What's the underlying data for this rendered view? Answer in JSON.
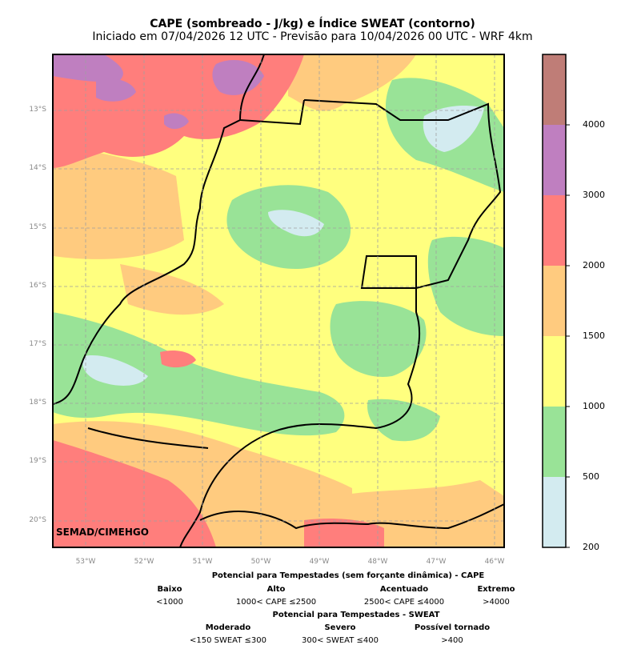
{
  "title": "CAPE (sombreado - J/kg) e Índice SWEAT (contorno)",
  "subtitle": "Iniciado em 07/04/2026 12 UTC - Previsão para 10/04/2026 00 UTC - WRF 4km",
  "credit": "SEMAD/CIMEHGO",
  "lat_labels": [
    "13°S",
    "14°S",
    "15°S",
    "16°S",
    "17°S",
    "18°S",
    "19°S",
    "20°S"
  ],
  "lon_labels": [
    "53°W",
    "52°W",
    "51°W",
    "50°W",
    "49°W",
    "48°W",
    "47°W",
    "46°W"
  ],
  "colorbar": {
    "ticks": [
      "4000",
      "3000",
      "2000",
      "1500",
      "1000",
      "500",
      "200"
    ],
    "colors": [
      "#bf7d77",
      "#bf7fc0",
      "#ff7e7c",
      "#ffcb7f",
      "#ffff7f",
      "#99e397",
      "#d3ebf0"
    ]
  },
  "map_colors": {
    "background": "#ffff7f",
    "green": "#99e397",
    "lightblue": "#d3ebf0",
    "orange": "#ffcb7f",
    "red": "#ff7e7c",
    "purple": "#bf7fc0"
  },
  "legend": {
    "cape_title": "Potencial para Tempestades (sem forçante dinâmica) - CAPE",
    "cape_levels": [
      {
        "name": "Baixo",
        "range": "<1000"
      },
      {
        "name": "Alto",
        "range": "1000< CAPE ≤2500"
      },
      {
        "name": "Acentuado",
        "range": "2500< CAPE ≤4000"
      },
      {
        "name": "Extremo",
        "range": ">4000"
      }
    ],
    "sweat_title": "Potencial para Tempestades - SWEAT",
    "sweat_levels": [
      {
        "name": "Moderado",
        "range": "<150 SWEAT ≤300"
      },
      {
        "name": "Severo",
        "range": "300< SWEAT ≤400"
      },
      {
        "name": "Possível tornado",
        "range": ">400"
      }
    ]
  }
}
